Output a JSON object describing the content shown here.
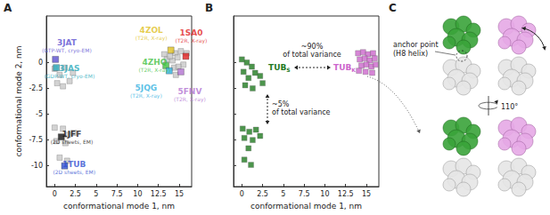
{
  "chart_data": [
    {
      "type": "scatter",
      "title": "A",
      "x_label": "conformational mode 1, nm",
      "y_label": "conformational mode 2, nm",
      "xlim": [
        -1,
        16.5
      ],
      "ylim": [
        -12,
        4.5
      ],
      "xticks": [
        0,
        2.5,
        5,
        7.5,
        10,
        12.5,
        15
      ],
      "yticks": [
        0,
        -2.5,
        -5,
        -7.5,
        -10
      ],
      "marker": "square",
      "grid": false,
      "series": [
        {
          "color": "#c8c8c8",
          "values": [
            [
              0,
              -0.6
            ],
            [
              0.6,
              -1.2
            ],
            [
              1.2,
              -0.5
            ],
            [
              1.8,
              -1.8
            ],
            [
              0.3,
              -2.0
            ],
            [
              1.0,
              -2.3
            ],
            [
              2.2,
              -1.0
            ],
            [
              0,
              -6.3
            ],
            [
              1.0,
              -6.4
            ],
            [
              1.6,
              -7.0
            ],
            [
              0.2,
              -7.6
            ],
            [
              1.3,
              -7.8
            ],
            [
              2.3,
              -6.8
            ],
            [
              0.6,
              -9.2
            ],
            [
              1.5,
              -9.5
            ],
            [
              13.2,
              0.8
            ],
            [
              14.5,
              0.9
            ],
            [
              15.2,
              1.1
            ],
            [
              13.5,
              0.3
            ],
            [
              14.2,
              0.2
            ],
            [
              14.8,
              0.5
            ],
            [
              15.5,
              -0.2
            ],
            [
              14.4,
              -0.5
            ],
            [
              14.6,
              -1.2
            ],
            [
              15.9,
              0.9
            ],
            [
              14.9,
              -0.4
            ],
            [
              13.9,
              0.6
            ]
          ]
        }
      ],
      "labeled_points": [
        {
          "x": 0.1,
          "y": 0.3,
          "color": "#5b4fd0",
          "label": "3JAT",
          "note": "(GTP-WT, cryo-EM)"
        },
        {
          "x": 0.2,
          "y": -0.5,
          "color": "#2aaabb",
          "label": "3JAS",
          "note": "(GDP-WT, cryo-EM)"
        },
        {
          "x": 0.8,
          "y": -7.2,
          "color": "#111111",
          "label": "1JFF",
          "note": "(2D sheets, EM)"
        },
        {
          "x": 1.2,
          "y": -10,
          "color": "#3050d0",
          "label": "1TUB",
          "note": "(2D sheets, EM)"
        },
        {
          "x": 14.0,
          "y": 1.2,
          "color": "#e0c020",
          "label": "4ZOL",
          "note": "(T2R, X-ray)"
        },
        {
          "x": 15.8,
          "y": 0.6,
          "color": "#e02020",
          "label": "1SA0",
          "note": "(T2R, X-ray)"
        },
        {
          "x": 13.4,
          "y": -0.3,
          "color": "#40c040",
          "label": "4ZHQ",
          "note": "(T2R, X-ray)"
        },
        {
          "x": 13.8,
          "y": -0.8,
          "color": "#30b0e0",
          "label": "5JQG",
          "note": "(T2R, X-ray)"
        },
        {
          "x": 15.2,
          "y": -0.9,
          "color": "#b070d0",
          "label": "5FNV",
          "note": "(T2R, X-ray)"
        }
      ]
    },
    {
      "type": "scatter",
      "title": "B",
      "x_label": "conformational mode 1, nm",
      "xlim": [
        -1,
        16.5
      ],
      "ylim": [
        -12,
        4.5
      ],
      "xticks": [
        0,
        2.5,
        5,
        7.5,
        10,
        12.5,
        15
      ],
      "yticks": [
        0,
        -2.5,
        -5,
        -7.5,
        -10
      ],
      "tick_labels": "x",
      "marker": "square",
      "grid": false,
      "series": [
        {
          "label": {
            "text": "TUB",
            "sub": "S"
          },
          "color": "#1f7a1f",
          "values": [
            [
              0.0,
              0.3
            ],
            [
              0.6,
              0.0
            ],
            [
              1.2,
              -0.4
            ],
            [
              0.2,
              -0.9
            ],
            [
              1.6,
              -1.0
            ],
            [
              0.8,
              -1.5
            ],
            [
              2.2,
              -1.3
            ],
            [
              0.4,
              -2.2
            ],
            [
              1.3,
              -2.5
            ],
            [
              2.5,
              -2.0
            ],
            [
              0.1,
              -6.4
            ],
            [
              0.9,
              -6.7
            ],
            [
              1.7,
              -6.5
            ],
            [
              0.3,
              -7.3
            ],
            [
              1.3,
              -7.5
            ],
            [
              2.2,
              -7.1
            ],
            [
              0.8,
              -8.3
            ],
            [
              0.3,
              -9.4
            ],
            [
              1.1,
              -9.9
            ]
          ]
        },
        {
          "label": {
            "text": "TUB",
            "sub": "K"
          },
          "color": "#cc66cc",
          "values": [
            [
              14.0,
              0.9
            ],
            [
              14.6,
              1.0
            ],
            [
              15.2,
              0.8
            ],
            [
              15.8,
              0.9
            ],
            [
              14.2,
              0.3
            ],
            [
              14.8,
              0.4
            ],
            [
              15.4,
              0.2
            ],
            [
              16.0,
              0.4
            ],
            [
              14.4,
              -0.3
            ],
            [
              15.0,
              -0.2
            ],
            [
              15.6,
              -0.4
            ],
            [
              14.1,
              -0.8
            ],
            [
              14.9,
              -0.9
            ],
            [
              15.7,
              -1.0
            ],
            [
              16.1,
              -0.2
            ]
          ]
        }
      ],
      "annotations": [
        {
          "lines": [
            "~90%",
            "of total variance"
          ]
        },
        {
          "lines": [
            "~5%",
            "of total variance"
          ]
        }
      ]
    }
  ],
  "diagram": {
    "title": "C",
    "anchor_label": [
      "anchor point",
      "(H8 helix)"
    ],
    "rotation_label": "110°"
  }
}
